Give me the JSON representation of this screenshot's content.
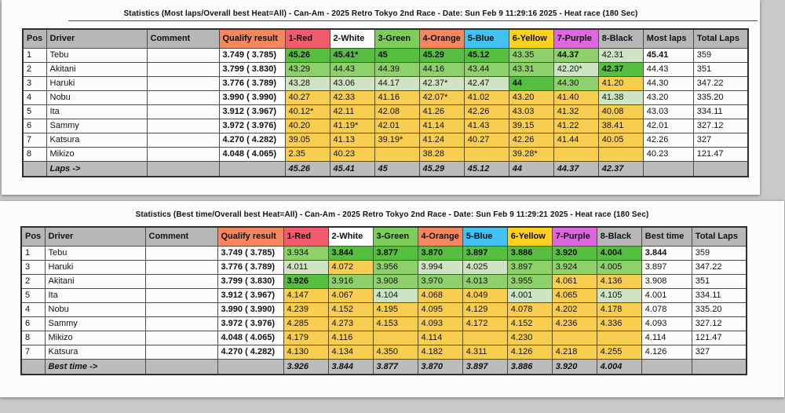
{
  "colors": {
    "strong_green": "#56bf3f",
    "mid_green": "#8ed06a",
    "pale_green": "#cfe4c3",
    "yellow": "#f8ce51",
    "header_gray": "#b7b7b7",
    "footer_gray": "#bcbcbc",
    "header_red": "#f05c6c",
    "header_green": "#7ccd5c",
    "header_orange": "#f4875f",
    "header_blue": "#42c2f2",
    "header_yellow": "#fed120",
    "header_purple": "#dc67de"
  },
  "tables": [
    {
      "title": "Statistics (Most laps/Overall best Heat=All) - Can-Am - 2025 Retro Tokyo 2nd Race - Date: Sun Feb  9 11:29:16 2025 - Heat race (180 Sec)",
      "columns": [
        {
          "label": "Pos",
          "color": "gray"
        },
        {
          "label": "Driver",
          "color": "gray"
        },
        {
          "label": "Comment",
          "color": "gray"
        },
        {
          "label": "Qualify result",
          "color": "orange"
        },
        {
          "label": "1-Red",
          "color": "red"
        },
        {
          "label": "2-White",
          "color": "white"
        },
        {
          "label": "3-Green",
          "color": "green"
        },
        {
          "label": "4-Orange",
          "color": "orange"
        },
        {
          "label": "5-Blue",
          "color": "blue"
        },
        {
          "label": "6-Yellow",
          "color": "yellow"
        },
        {
          "label": "7-Purple",
          "color": "purple"
        },
        {
          "label": "8-Black",
          "color": "gray"
        },
        {
          "label": "Most laps",
          "color": "gray"
        },
        {
          "label": "Total Laps",
          "color": "gray"
        }
      ],
      "rows": [
        {
          "pos": "1",
          "driver": "Tebu",
          "comment": "",
          "qualify": "3.749 ( 3.785)",
          "cells": [
            {
              "v": "45.26",
              "c": "g1",
              "b": true
            },
            {
              "v": "45.41*",
              "c": "g1",
              "b": true
            },
            {
              "v": "45",
              "c": "g1",
              "b": true
            },
            {
              "v": "45.29",
              "c": "g1",
              "b": true
            },
            {
              "v": "45.12",
              "c": "g1",
              "b": true
            },
            {
              "v": "43.35",
              "c": "g2"
            },
            {
              "v": "44.37",
              "c": "g2",
              "b": true
            },
            {
              "v": "42.31",
              "c": "g3"
            }
          ],
          "summary": {
            "v": "45.41",
            "b": true
          },
          "total": "359"
        },
        {
          "pos": "2",
          "driver": "Akitani",
          "comment": "",
          "qualify": "3.799 ( 3.830)",
          "cells": [
            {
              "v": "43.29",
              "c": "g2"
            },
            {
              "v": "44.43",
              "c": "g2"
            },
            {
              "v": "44.39",
              "c": "g2"
            },
            {
              "v": "44.16",
              "c": "g2"
            },
            {
              "v": "43.44",
              "c": "g2"
            },
            {
              "v": "43.31",
              "c": "g2"
            },
            {
              "v": "42.20*",
              "c": "g3"
            },
            {
              "v": "42.37",
              "c": "g1",
              "b": true
            }
          ],
          "summary": {
            "v": "44.43"
          },
          "total": "351"
        },
        {
          "pos": "3",
          "driver": "Haruki",
          "comment": "",
          "qualify": "3.776 ( 3.789)",
          "cells": [
            {
              "v": "43.28",
              "c": "g3"
            },
            {
              "v": "43.06",
              "c": "g3"
            },
            {
              "v": "44.17",
              "c": "g3"
            },
            {
              "v": "42.37*",
              "c": "g3"
            },
            {
              "v": "42.47",
              "c": "g3"
            },
            {
              "v": "44",
              "c": "g1",
              "b": true
            },
            {
              "v": "44.30",
              "c": "g2"
            },
            {
              "v": "41.20",
              "c": "y"
            }
          ],
          "summary": {
            "v": "44.30"
          },
          "total": "347.22"
        },
        {
          "pos": "4",
          "driver": "Nobu",
          "comment": "",
          "qualify": "3.990 ( 3.990)",
          "cells": [
            {
              "v": "40.27",
              "c": "y"
            },
            {
              "v": "42.33",
              "c": "y"
            },
            {
              "v": "41.16",
              "c": "y"
            },
            {
              "v": "42.07*",
              "c": "y"
            },
            {
              "v": "41.02",
              "c": "y"
            },
            {
              "v": "43.20",
              "c": "y"
            },
            {
              "v": "41.40",
              "c": "y"
            },
            {
              "v": "41.38",
              "c": "g3"
            }
          ],
          "summary": {
            "v": "43.20"
          },
          "total": "335.20"
        },
        {
          "pos": "5",
          "driver": "Ita",
          "comment": "",
          "qualify": "3.912 ( 3.967)",
          "cells": [
            {
              "v": "40.12*",
              "c": "y"
            },
            {
              "v": "42.11",
              "c": "y"
            },
            {
              "v": "42.08",
              "c": "y"
            },
            {
              "v": "41.26",
              "c": "y"
            },
            {
              "v": "42.26",
              "c": "y"
            },
            {
              "v": "43.03",
              "c": "y"
            },
            {
              "v": "41.32",
              "c": "y"
            },
            {
              "v": "40.08",
              "c": "y"
            }
          ],
          "summary": {
            "v": "43.03"
          },
          "total": "334.11"
        },
        {
          "pos": "6",
          "driver": "Sammy",
          "comment": "",
          "qualify": "3.972 ( 3.976)",
          "cells": [
            {
              "v": "40.20",
              "c": "y"
            },
            {
              "v": "41.19*",
              "c": "y"
            },
            {
              "v": "42.01",
              "c": "y"
            },
            {
              "v": "41.14",
              "c": "y"
            },
            {
              "v": "41.43",
              "c": "y"
            },
            {
              "v": "39.15",
              "c": "y"
            },
            {
              "v": "41.22",
              "c": "y"
            },
            {
              "v": "38.41",
              "c": "y"
            }
          ],
          "summary": {
            "v": "42.01"
          },
          "total": "327.12"
        },
        {
          "pos": "7",
          "driver": "Katsura",
          "comment": "",
          "qualify": "4.270 ( 4.282)",
          "cells": [
            {
              "v": "39.05",
              "c": "y"
            },
            {
              "v": "41.13",
              "c": "y"
            },
            {
              "v": "39.19*",
              "c": "y"
            },
            {
              "v": "41.24",
              "c": "y"
            },
            {
              "v": "40.27",
              "c": "y"
            },
            {
              "v": "42.26",
              "c": "y"
            },
            {
              "v": "41.44",
              "c": "y"
            },
            {
              "v": "40.05",
              "c": "y"
            }
          ],
          "summary": {
            "v": "42.26"
          },
          "total": "327"
        },
        {
          "pos": "8",
          "driver": "Mikizo",
          "comment": "",
          "qualify": "4.048 ( 4.065)",
          "cells": [
            {
              "v": "2.35",
              "c": "y"
            },
            {
              "v": "40.23",
              "c": "y"
            },
            {
              "v": "",
              "c": "y"
            },
            {
              "v": "38.28",
              "c": "y"
            },
            {
              "v": "",
              "c": "y"
            },
            {
              "v": "39.28*",
              "c": "y"
            },
            {
              "v": "",
              "c": "y"
            },
            {
              "v": "",
              "c": "y"
            }
          ],
          "summary": {
            "v": "40.23"
          },
          "total": "121.47"
        }
      ],
      "footer": {
        "label": "Laps ->",
        "values": [
          "45.26",
          "45.41",
          "45",
          "45.29",
          "45.12",
          "44",
          "44.37",
          "42.37"
        ]
      }
    },
    {
      "title": "Statistics (Best time/Overall best Heat=All) - Can-Am - 2025 Retro Tokyo 2nd Race - Date: Sun Feb  9 11:29:21 2025 - Heat race (180 Sec)",
      "columns": [
        {
          "label": "Pos",
          "color": "gray"
        },
        {
          "label": "Driver",
          "color": "gray"
        },
        {
          "label": "Comment",
          "color": "gray"
        },
        {
          "label": "Qualify result",
          "color": "orange"
        },
        {
          "label": "1-Red",
          "color": "red"
        },
        {
          "label": "2-White",
          "color": "white"
        },
        {
          "label": "3-Green",
          "color": "green"
        },
        {
          "label": "4-Orange",
          "color": "orange"
        },
        {
          "label": "5-Blue",
          "color": "blue"
        },
        {
          "label": "6-Yellow",
          "color": "yellow"
        },
        {
          "label": "7-Purple",
          "color": "purple"
        },
        {
          "label": "8-Black",
          "color": "gray"
        },
        {
          "label": "Best time",
          "color": "gray"
        },
        {
          "label": "Total Laps",
          "color": "gray"
        }
      ],
      "rows": [
        {
          "pos": "1",
          "driver": "Tebu",
          "comment": "",
          "qualify": "3.749 ( 3.785)",
          "cells": [
            {
              "v": "3.934",
              "c": "g2"
            },
            {
              "v": "3.844",
              "c": "g1",
              "b": true
            },
            {
              "v": "3.877",
              "c": "g1",
              "b": true
            },
            {
              "v": "3.870",
              "c": "g1",
              "b": true
            },
            {
              "v": "3.897",
              "c": "g1",
              "b": true
            },
            {
              "v": "3.886",
              "c": "g1",
              "b": true
            },
            {
              "v": "3.920",
              "c": "g1",
              "b": true
            },
            {
              "v": "4.004",
              "c": "g1",
              "b": true
            }
          ],
          "summary": {
            "v": "3.844",
            "b": true
          },
          "total": "359"
        },
        {
          "pos": "3",
          "driver": "Haruki",
          "comment": "",
          "qualify": "3.776 ( 3.789)",
          "cells": [
            {
              "v": "4.011",
              "c": "g3"
            },
            {
              "v": "4.072",
              "c": "y"
            },
            {
              "v": "3.956",
              "c": "g2"
            },
            {
              "v": "3.994",
              "c": "g3"
            },
            {
              "v": "4.025",
              "c": "g3"
            },
            {
              "v": "3.897",
              "c": "g2"
            },
            {
              "v": "3.924",
              "c": "g2"
            },
            {
              "v": "4.005",
              "c": "g2"
            }
          ],
          "summary": {
            "v": "3.897"
          },
          "total": "347.22"
        },
        {
          "pos": "2",
          "driver": "Akitani",
          "comment": "",
          "qualify": "3.799 ( 3.830)",
          "cells": [
            {
              "v": "3.926",
              "c": "g1",
              "b": true
            },
            {
              "v": "3.916",
              "c": "g2"
            },
            {
              "v": "3.908",
              "c": "g2"
            },
            {
              "v": "3.970",
              "c": "g2"
            },
            {
              "v": "4.013",
              "c": "g2"
            },
            {
              "v": "3.955",
              "c": "g2"
            },
            {
              "v": "4.061",
              "c": "y"
            },
            {
              "v": "4.136",
              "c": "y"
            }
          ],
          "summary": {
            "v": "3.908"
          },
          "total": "351"
        },
        {
          "pos": "5",
          "driver": "Ita",
          "comment": "",
          "qualify": "3.912 ( 3.967)",
          "cells": [
            {
              "v": "4.147",
              "c": "y"
            },
            {
              "v": "4.067",
              "c": "y"
            },
            {
              "v": "4.104",
              "c": "g3"
            },
            {
              "v": "4.068",
              "c": "y"
            },
            {
              "v": "4.049",
              "c": "y"
            },
            {
              "v": "4.001",
              "c": "g3"
            },
            {
              "v": "4.065",
              "c": "y"
            },
            {
              "v": "4.105",
              "c": "g3"
            }
          ],
          "summary": {
            "v": "4.001"
          },
          "total": "334.11"
        },
        {
          "pos": "4",
          "driver": "Nobu",
          "comment": "",
          "qualify": "3.990 ( 3.990)",
          "cells": [
            {
              "v": "4.239",
              "c": "y"
            },
            {
              "v": "4.152",
              "c": "y"
            },
            {
              "v": "4.195",
              "c": "y"
            },
            {
              "v": "4.095",
              "c": "y"
            },
            {
              "v": "4.129",
              "c": "y"
            },
            {
              "v": "4.078",
              "c": "y"
            },
            {
              "v": "4.202",
              "c": "y"
            },
            {
              "v": "4.178",
              "c": "y"
            }
          ],
          "summary": {
            "v": "4.078"
          },
          "total": "335.20"
        },
        {
          "pos": "6",
          "driver": "Sammy",
          "comment": "",
          "qualify": "3.972 ( 3.976)",
          "cells": [
            {
              "v": "4.285",
              "c": "y"
            },
            {
              "v": "4.273",
              "c": "y"
            },
            {
              "v": "4.153",
              "c": "y"
            },
            {
              "v": "4.093",
              "c": "y"
            },
            {
              "v": "4.172",
              "c": "y"
            },
            {
              "v": "4.152",
              "c": "y"
            },
            {
              "v": "4.236",
              "c": "y"
            },
            {
              "v": "4.336",
              "c": "y"
            }
          ],
          "summary": {
            "v": "4.093"
          },
          "total": "327.12"
        },
        {
          "pos": "8",
          "driver": "Mikizo",
          "comment": "",
          "qualify": "4.048 ( 4.065)",
          "cells": [
            {
              "v": "4.179",
              "c": "y"
            },
            {
              "v": "4.116",
              "c": "y"
            },
            {
              "v": "",
              "c": "y"
            },
            {
              "v": "4.114",
              "c": "y"
            },
            {
              "v": "",
              "c": "y"
            },
            {
              "v": "4.230",
              "c": "y"
            },
            {
              "v": "",
              "c": "y"
            },
            {
              "v": "",
              "c": "y"
            }
          ],
          "summary": {
            "v": "4.114"
          },
          "total": "121.47"
        },
        {
          "pos": "7",
          "driver": "Katsura",
          "comment": "",
          "qualify": "4.270 ( 4.282)",
          "cells": [
            {
              "v": "4.130",
              "c": "y"
            },
            {
              "v": "4.134",
              "c": "y"
            },
            {
              "v": "4.350",
              "c": "y"
            },
            {
              "v": "4.182",
              "c": "y"
            },
            {
              "v": "4.311",
              "c": "y"
            },
            {
              "v": "4.126",
              "c": "y"
            },
            {
              "v": "4.218",
              "c": "y"
            },
            {
              "v": "4.255",
              "c": "y"
            }
          ],
          "summary": {
            "v": "4.126"
          },
          "total": "327"
        }
      ],
      "footer": {
        "label": "Best time ->",
        "values": [
          "3.926",
          "3.844",
          "3.877",
          "3.870",
          "3.897",
          "3.886",
          "3.920",
          "4.004"
        ]
      }
    }
  ]
}
